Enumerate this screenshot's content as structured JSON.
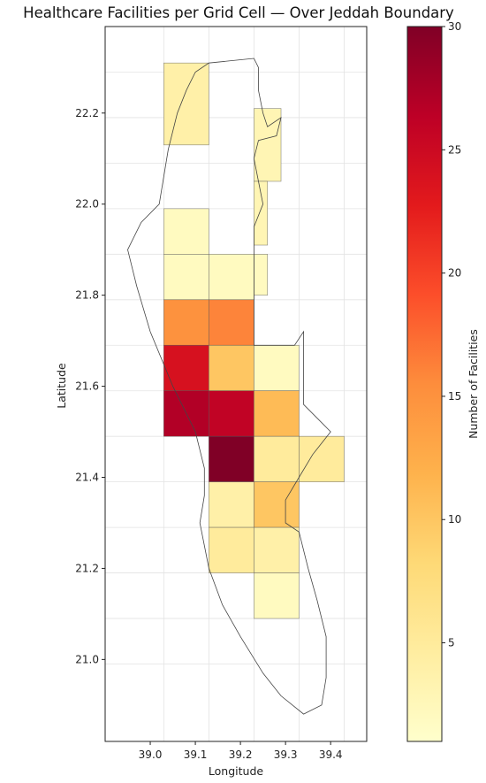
{
  "chart_data": {
    "type": "heatmap",
    "title": "Healthcare Facilities per Grid Cell — Over Jeddah Boundary",
    "xlabel": "Longitude",
    "ylabel": "Latitude",
    "xlim": [
      38.9,
      39.48
    ],
    "ylim": [
      20.82,
      22.39
    ],
    "xticks": [
      "39.0",
      "39.1",
      "39.2",
      "39.3",
      "39.4"
    ],
    "yticks": [
      "21.0",
      "21.2",
      "21.4",
      "21.6",
      "21.8",
      "22.0",
      "22.2"
    ],
    "grid": true,
    "cell_size_deg": 0.1,
    "cells": [
      {
        "lon": [
          39.03,
          39.13
        ],
        "lat": [
          22.13,
          22.31
        ],
        "value": 4
      },
      {
        "lon": [
          39.23,
          39.29
        ],
        "lat": [
          22.05,
          22.21
        ],
        "value": 3
      },
      {
        "lon": [
          39.23,
          39.26
        ],
        "lat": [
          21.91,
          22.05
        ],
        "value": 3
      },
      {
        "lon": [
          39.03,
          39.13
        ],
        "lat": [
          21.89,
          21.99
        ],
        "value": 2
      },
      {
        "lon": [
          39.03,
          39.13
        ],
        "lat": [
          21.79,
          21.89
        ],
        "value": 2
      },
      {
        "lon": [
          39.13,
          39.23
        ],
        "lat": [
          21.79,
          21.89
        ],
        "value": 2
      },
      {
        "lon": [
          39.23,
          39.26
        ],
        "lat": [
          21.8,
          21.89
        ],
        "value": 2
      },
      {
        "lon": [
          39.03,
          39.13
        ],
        "lat": [
          21.69,
          21.79
        ],
        "value": 15
      },
      {
        "lon": [
          39.13,
          39.23
        ],
        "lat": [
          21.69,
          21.79
        ],
        "value": 16
      },
      {
        "lon": [
          39.03,
          39.13
        ],
        "lat": [
          21.59,
          21.69
        ],
        "value": 24
      },
      {
        "lon": [
          39.13,
          39.23
        ],
        "lat": [
          21.59,
          21.69
        ],
        "value": 10
      },
      {
        "lon": [
          39.23,
          39.33
        ],
        "lat": [
          21.59,
          21.69
        ],
        "value": 2
      },
      {
        "lon": [
          39.03,
          39.13
        ],
        "lat": [
          21.49,
          21.59
        ],
        "value": 27
      },
      {
        "lon": [
          39.13,
          39.23
        ],
        "lat": [
          21.49,
          21.59
        ],
        "value": 26
      },
      {
        "lon": [
          39.23,
          39.33
        ],
        "lat": [
          21.49,
          21.59
        ],
        "value": 11
      },
      {
        "lon": [
          39.13,
          39.23
        ],
        "lat": [
          21.39,
          21.49
        ],
        "value": 30
      },
      {
        "lon": [
          39.23,
          39.33
        ],
        "lat": [
          21.39,
          21.49
        ],
        "value": 5
      },
      {
        "lon": [
          39.33,
          39.43
        ],
        "lat": [
          21.39,
          21.49
        ],
        "value": 5
      },
      {
        "lon": [
          39.13,
          39.23
        ],
        "lat": [
          21.29,
          21.39
        ],
        "value": 4
      },
      {
        "lon": [
          39.23,
          39.33
        ],
        "lat": [
          21.29,
          21.39
        ],
        "value": 10
      },
      {
        "lon": [
          39.13,
          39.23
        ],
        "lat": [
          21.19,
          21.29
        ],
        "value": 5
      },
      {
        "lon": [
          39.23,
          39.33
        ],
        "lat": [
          21.19,
          21.29
        ],
        "value": 4
      },
      {
        "lon": [
          39.23,
          39.33
        ],
        "lat": [
          21.09,
          21.19
        ],
        "value": 2
      }
    ],
    "boundary": [
      [
        39.23,
        22.32
      ],
      [
        39.24,
        22.3
      ],
      [
        39.24,
        22.25
      ],
      [
        39.25,
        22.2
      ],
      [
        39.26,
        22.17
      ],
      [
        39.29,
        22.19
      ],
      [
        39.28,
        22.15
      ],
      [
        39.24,
        22.14
      ],
      [
        39.23,
        22.1
      ],
      [
        39.24,
        22.05
      ],
      [
        39.25,
        22.0
      ],
      [
        39.23,
        21.95
      ],
      [
        39.23,
        21.89
      ],
      [
        39.23,
        21.8
      ],
      [
        39.23,
        21.69
      ],
      [
        39.27,
        21.69
      ],
      [
        39.32,
        21.69
      ],
      [
        39.34,
        21.72
      ],
      [
        39.34,
        21.64
      ],
      [
        39.34,
        21.56
      ],
      [
        39.38,
        21.52
      ],
      [
        39.4,
        21.5
      ],
      [
        39.36,
        21.45
      ],
      [
        39.33,
        21.4
      ],
      [
        39.3,
        21.35
      ],
      [
        39.3,
        21.3
      ],
      [
        39.33,
        21.28
      ],
      [
        39.35,
        21.2
      ],
      [
        39.37,
        21.13
      ],
      [
        39.39,
        21.05
      ],
      [
        39.39,
        20.96
      ],
      [
        39.38,
        20.9
      ],
      [
        39.34,
        20.88
      ],
      [
        39.29,
        20.92
      ],
      [
        39.25,
        20.97
      ],
      [
        39.2,
        21.05
      ],
      [
        39.16,
        21.12
      ],
      [
        39.13,
        21.2
      ],
      [
        39.11,
        21.3
      ],
      [
        39.12,
        21.36
      ],
      [
        39.12,
        21.42
      ],
      [
        39.1,
        21.5
      ],
      [
        39.05,
        21.6
      ],
      [
        39.0,
        21.72
      ],
      [
        38.97,
        21.82
      ],
      [
        38.95,
        21.9
      ],
      [
        38.98,
        21.96
      ],
      [
        39.02,
        22.0
      ],
      [
        39.03,
        22.06
      ],
      [
        39.04,
        22.12
      ],
      [
        39.06,
        22.2
      ],
      [
        39.08,
        22.25
      ],
      [
        39.1,
        22.29
      ],
      [
        39.13,
        22.31
      ],
      [
        39.23,
        22.32
      ]
    ],
    "colorbar": {
      "label": "Number of Facilities",
      "colormap": "YlOrRd",
      "range": [
        1,
        30
      ],
      "ticks": [
        "5",
        "10",
        "15",
        "20",
        "25",
        "30"
      ]
    }
  }
}
